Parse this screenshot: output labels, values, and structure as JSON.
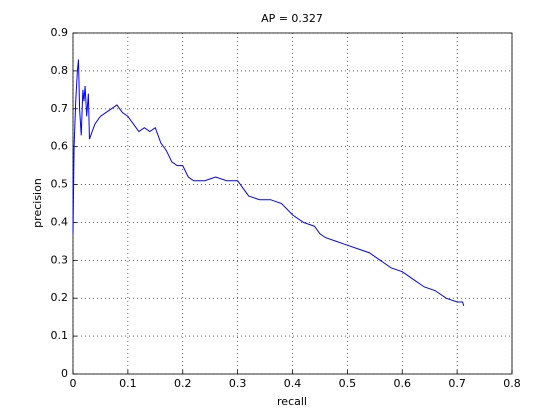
{
  "chart_data": {
    "type": "line",
    "title": "AP = 0.327",
    "x_label": "recall",
    "y_label": "precision",
    "x": [
      0,
      0.002,
      0.005,
      0.008,
      0.01,
      0.012,
      0.015,
      0.018,
      0.02,
      0.022,
      0.025,
      0.028,
      0.03,
      0.035,
      0.04,
      0.05,
      0.06,
      0.07,
      0.08,
      0.09,
      0.1,
      0.11,
      0.12,
      0.13,
      0.14,
      0.15,
      0.16,
      0.17,
      0.18,
      0.19,
      0.2,
      0.21,
      0.22,
      0.24,
      0.26,
      0.28,
      0.3,
      0.31,
      0.32,
      0.34,
      0.36,
      0.38,
      0.4,
      0.42,
      0.44,
      0.45,
      0.46,
      0.48,
      0.5,
      0.52,
      0.54,
      0.56,
      0.58,
      0.6,
      0.62,
      0.64,
      0.66,
      0.68,
      0.7,
      0.71,
      0.712
    ],
    "series": [
      {
        "color": "#0000ff",
        "values": [
          0.37,
          0.6,
          0.72,
          0.8,
          0.83,
          0.7,
          0.63,
          0.75,
          0.72,
          0.76,
          0.68,
          0.74,
          0.62,
          0.64,
          0.66,
          0.68,
          0.69,
          0.7,
          0.71,
          0.69,
          0.68,
          0.66,
          0.64,
          0.65,
          0.64,
          0.65,
          0.61,
          0.59,
          0.56,
          0.55,
          0.55,
          0.52,
          0.51,
          0.51,
          0.52,
          0.51,
          0.51,
          0.49,
          0.47,
          0.46,
          0.46,
          0.45,
          0.42,
          0.4,
          0.39,
          0.37,
          0.36,
          0.35,
          0.34,
          0.33,
          0.32,
          0.3,
          0.28,
          0.27,
          0.25,
          0.23,
          0.22,
          0.2,
          0.19,
          0.19,
          0.18
        ]
      }
    ],
    "xlim": [
      0,
      0.8
    ],
    "xticks": [
      0,
      0.1,
      0.2,
      0.3,
      0.4,
      0.5,
      0.6,
      0.7,
      0.8
    ],
    "ylim": [
      0,
      0.9
    ],
    "yticks": [
      0,
      0.1,
      0.2,
      0.3,
      0.4,
      0.5,
      0.6,
      0.7,
      0.8,
      0.9
    ],
    "grid": true
  }
}
